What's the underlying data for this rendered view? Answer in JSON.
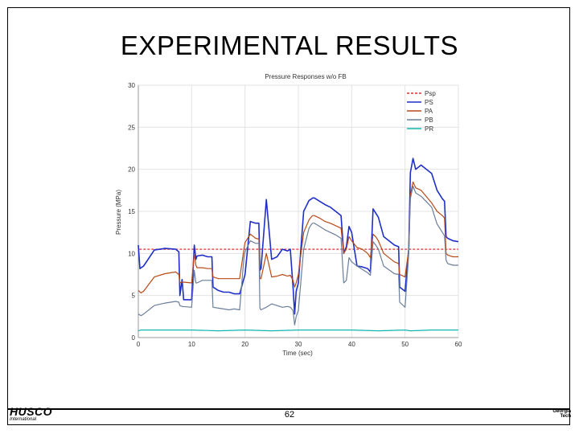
{
  "slide": {
    "title": "EXPERIMENTAL RESULTS",
    "page_number": "62",
    "logo_left": "HUSCO",
    "logo_left_sub": "International",
    "logo_right_line1": "Georgia",
    "logo_right_line2": "Tech"
  },
  "chart_data": {
    "type": "line",
    "title": "Pressure Responses w/o FB",
    "xlabel": "Time (sec)",
    "ylabel": "Pressure (MPa)",
    "xlim": [
      0,
      60
    ],
    "ylim": [
      0,
      30
    ],
    "x_ticks": [
      0,
      10,
      20,
      30,
      40,
      50,
      60
    ],
    "y_ticks": [
      0,
      5,
      10,
      15,
      20,
      25,
      30
    ],
    "grid": true,
    "legend_position": "top-right",
    "series": [
      {
        "name": "Psp",
        "color": "#e03030",
        "dash": true,
        "x": [
          0.2,
          60
        ],
        "y": [
          10.5,
          10.5
        ]
      },
      {
        "name": "PS",
        "color": "#1f2fc8",
        "dash": false,
        "x": [
          0,
          0.3,
          1,
          3,
          5,
          7,
          7.6,
          7.8,
          8.2,
          8.5,
          10,
          10.5,
          10.8,
          11,
          12,
          13,
          13.8,
          14,
          15,
          16,
          17,
          18,
          19,
          19.8,
          20,
          21,
          22,
          22.6,
          22.8,
          23,
          24,
          25,
          26,
          27,
          28,
          28.5,
          29,
          29.3,
          29.6,
          30,
          31,
          32,
          32.5,
          32.7,
          33,
          34,
          35,
          36,
          37,
          38,
          38.5,
          39,
          39.5,
          40,
          41,
          42,
          43,
          43.5,
          44,
          44.5,
          45,
          46,
          48,
          48.8,
          49,
          50,
          50.7,
          51,
          51.5,
          52,
          53,
          55,
          56,
          57,
          57.4,
          57.7,
          58,
          59,
          60
        ],
        "y": [
          11,
          8.2,
          8.5,
          10.4,
          10.6,
          10.5,
          10.2,
          5,
          6.9,
          4.5,
          4.5,
          11,
          9.3,
          9.7,
          9.8,
          9.6,
          9.6,
          6,
          5.6,
          5.4,
          5.4,
          5.2,
          5.2,
          7,
          7.5,
          13.8,
          13.6,
          13.6,
          8,
          8.2,
          16.4,
          9.3,
          9.6,
          10.5,
          10.3,
          10.5,
          6,
          2.8,
          5.5,
          6.5,
          15,
          16.3,
          16.5,
          16.6,
          16.6,
          16.2,
          15.8,
          15.5,
          15,
          14.5,
          10,
          10.8,
          13.2,
          12.5,
          8.5,
          8.4,
          8.2,
          7.8,
          15.3,
          14.8,
          14.3,
          12,
          11,
          10.8,
          6,
          5.5,
          10.5,
          19.6,
          21.3,
          20,
          20.5,
          19.5,
          17.5,
          16.5,
          16.2,
          12,
          11.8,
          11.5,
          11.4
        ]
      },
      {
        "name": "PA",
        "color": "#b84a18",
        "dash": false,
        "x": [
          0,
          0.5,
          1,
          3,
          5,
          7,
          7.6,
          7.8,
          8.2,
          10,
          10.5,
          10.8,
          11,
          12,
          13,
          13.8,
          14,
          15,
          16,
          17,
          18,
          19,
          19.8,
          20,
          21,
          22,
          22.6,
          22.8,
          23,
          24,
          25,
          26,
          27,
          28,
          28.5,
          29,
          29.3,
          29.6,
          30,
          31,
          32,
          32.5,
          32.7,
          33,
          34,
          35,
          36,
          37,
          38,
          38.5,
          39,
          39.5,
          40,
          41,
          42,
          43,
          43.5,
          44,
          44.5,
          45,
          46,
          48,
          48.8,
          49,
          50,
          50.7,
          51,
          51.5,
          52,
          53,
          55,
          56,
          57,
          57.4,
          57.7,
          58,
          59,
          60
        ],
        "y": [
          5.6,
          5.3,
          5.5,
          7.2,
          7.6,
          7.8,
          7.5,
          6.5,
          6.6,
          6.5,
          10,
          8.6,
          8.3,
          8.3,
          8.2,
          8.2,
          7.2,
          7,
          7,
          7,
          7,
          7,
          10.5,
          11.3,
          12.3,
          11.8,
          11.7,
          7,
          7,
          10,
          7.2,
          7.3,
          7.5,
          7.3,
          7.4,
          6.8,
          6,
          6.5,
          7.5,
          12.5,
          14,
          14.4,
          14.5,
          14.5,
          14.2,
          13.8,
          13.6,
          13.3,
          13,
          10,
          10.5,
          12,
          11.5,
          10.7,
          10.5,
          10,
          9.5,
          12.3,
          12,
          11.5,
          10,
          9,
          8.8,
          7.5,
          7.2,
          10.5,
          17,
          18.5,
          17.8,
          17.5,
          16,
          15,
          14.5,
          14.2,
          10,
          9.8,
          9.6,
          9.6
        ]
      },
      {
        "name": "PB",
        "color": "#6b7e9a",
        "dash": false,
        "x": [
          0,
          0.5,
          1,
          3,
          5,
          7,
          7.6,
          7.8,
          8.2,
          10,
          10.5,
          10.8,
          11,
          12,
          13,
          13.8,
          14,
          15,
          16,
          17,
          18,
          19,
          19.8,
          20,
          21,
          22,
          22.6,
          22.8,
          23,
          24,
          25,
          26,
          27,
          28,
          28.5,
          29,
          29.3,
          29.6,
          30,
          31,
          32,
          32.5,
          32.7,
          33,
          34,
          35,
          36,
          37,
          38,
          38.5,
          39,
          39.5,
          40,
          41,
          42,
          43,
          43.5,
          44,
          44.5,
          45,
          46,
          48,
          48.8,
          49,
          50,
          50.7,
          51,
          51.5,
          52,
          53,
          55,
          56,
          57,
          57.4,
          57.7,
          58,
          59,
          60
        ],
        "y": [
          2.8,
          2.6,
          2.8,
          3.8,
          4.1,
          4.3,
          4.2,
          3.8,
          3.7,
          3.6,
          8,
          6.5,
          6.5,
          6.8,
          6.8,
          6.8,
          3.6,
          3.5,
          3.4,
          3.3,
          3.4,
          3.3,
          9.5,
          10.2,
          11.5,
          11.2,
          11.2,
          3.5,
          3.3,
          3.6,
          4,
          3.8,
          3.6,
          3.7,
          3.6,
          3.2,
          1.5,
          2.5,
          3.2,
          10.5,
          13,
          13.5,
          13.6,
          13.6,
          13.2,
          12.8,
          12.5,
          12.2,
          11.8,
          6.5,
          6.8,
          9.5,
          9,
          8.5,
          8.1,
          7.7,
          7.4,
          11.4,
          11,
          10.5,
          8.5,
          7.6,
          7.5,
          4.2,
          3.6,
          10,
          16.5,
          18,
          17.2,
          16.8,
          15.5,
          13.5,
          12.5,
          12.1,
          9.2,
          8.8,
          8.6,
          8.6
        ]
      },
      {
        "name": "PR",
        "color": "#10b5b0",
        "dash": false,
        "x": [
          0,
          0.5,
          5,
          10,
          15,
          20,
          25,
          30,
          35,
          40,
          45,
          50,
          51,
          55,
          60
        ],
        "y": [
          0.8,
          0.9,
          0.9,
          0.9,
          0.8,
          0.9,
          0.8,
          0.9,
          0.9,
          0.9,
          0.8,
          0.9,
          0.8,
          0.9,
          0.9
        ]
      }
    ]
  }
}
